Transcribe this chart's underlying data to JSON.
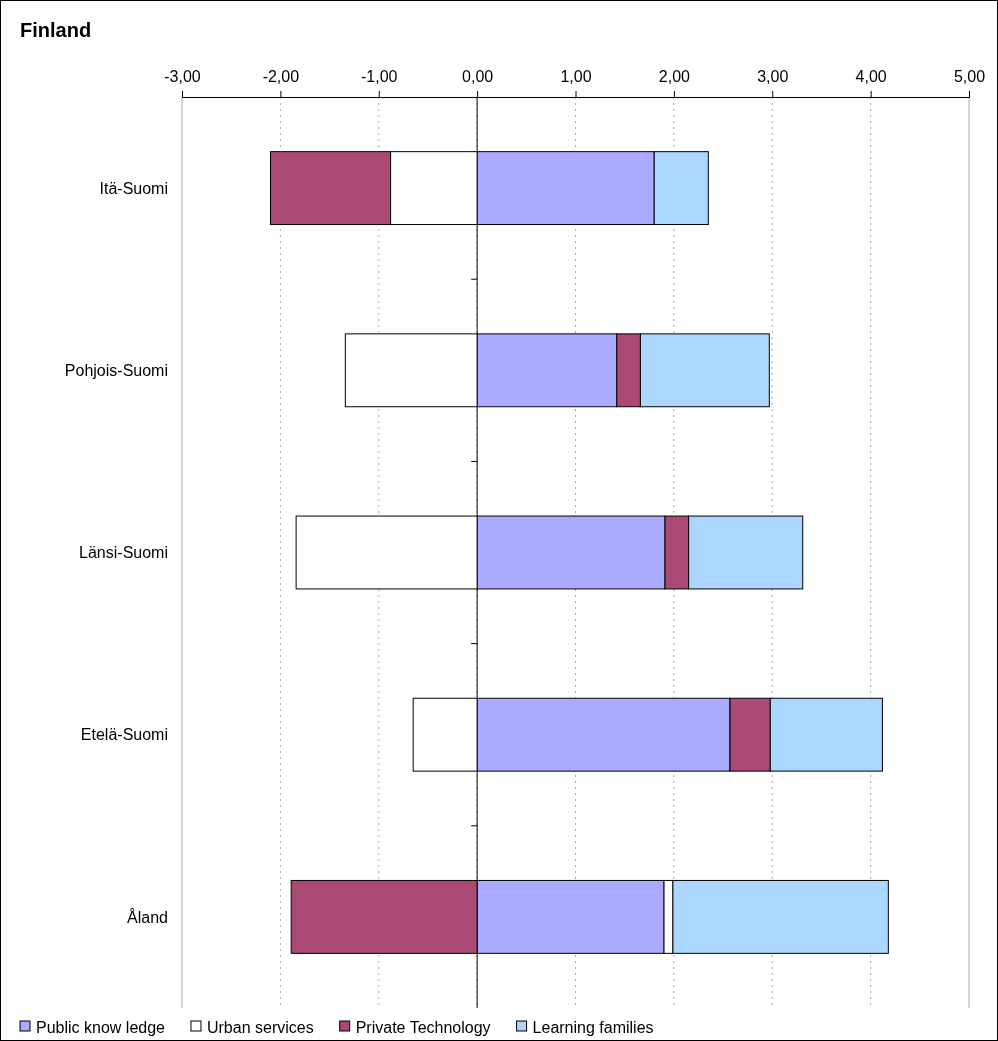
{
  "chart_data": {
    "type": "bar",
    "orientation": "horizontal",
    "stacked": true,
    "title": "Finland",
    "categories": [
      "Itä-Suomi",
      "Pohjois-Suomi",
      "Länsi-Suomi",
      "Etelä-Suomi",
      "Åland"
    ],
    "series": [
      {
        "name": "Public know ledge",
        "color": "#aaaaff",
        "values": [
          1.8,
          1.42,
          1.91,
          2.57,
          1.9
        ]
      },
      {
        "name": "Urban services",
        "color": "#ffffff",
        "values": [
          -0.88,
          -1.34,
          -1.84,
          -0.65,
          0.09
        ]
      },
      {
        "name": "Private Technology",
        "color": "#aa4a74",
        "values": [
          -1.22,
          0.24,
          0.24,
          0.41,
          -1.89
        ]
      },
      {
        "name": "Learning families",
        "color": "#aad6ff",
        "values": [
          0.55,
          1.31,
          1.16,
          1.14,
          2.19
        ]
      }
    ],
    "xlim": [
      -3,
      5
    ],
    "xticks": [
      {
        "value": -3,
        "label": "-3,00"
      },
      {
        "value": -2,
        "label": "-2,00"
      },
      {
        "value": -1,
        "label": "-1,00"
      },
      {
        "value": 0,
        "label": "0,00"
      },
      {
        "value": 1,
        "label": "1,00"
      },
      {
        "value": 2,
        "label": "2,00"
      },
      {
        "value": 3,
        "label": "3,00"
      },
      {
        "value": 4,
        "label": "4,00"
      },
      {
        "value": 5,
        "label": "5,00"
      }
    ],
    "grid": "x",
    "legend": "bottom"
  }
}
